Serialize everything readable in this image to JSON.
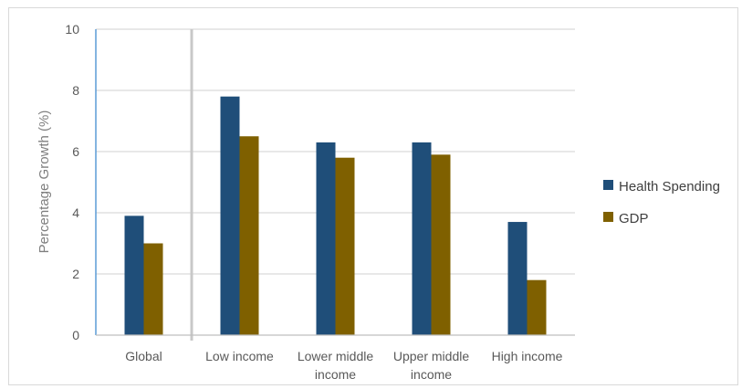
{
  "chart_data": {
    "type": "bar",
    "title": "",
    "xlabel": "",
    "ylabel": "Percentage Growth (%)",
    "ylim": [
      0,
      10
    ],
    "yticks": [
      0,
      2,
      4,
      6,
      8,
      10
    ],
    "categories": [
      [
        "Global"
      ],
      [
        "Low income"
      ],
      [
        "Lower middle",
        "income"
      ],
      [
        "Upper middle",
        "income"
      ],
      [
        "High income"
      ]
    ],
    "series": [
      {
        "name": "Health Spending",
        "color": "#1f4e79",
        "values": [
          3.9,
          7.8,
          6.3,
          6.3,
          3.7
        ]
      },
      {
        "name": "GDP",
        "color": "#7f6000",
        "values": [
          3.0,
          6.5,
          5.8,
          5.9,
          1.8
        ]
      }
    ],
    "grid": true,
    "legend": "right",
    "separator_after_category": 0
  }
}
